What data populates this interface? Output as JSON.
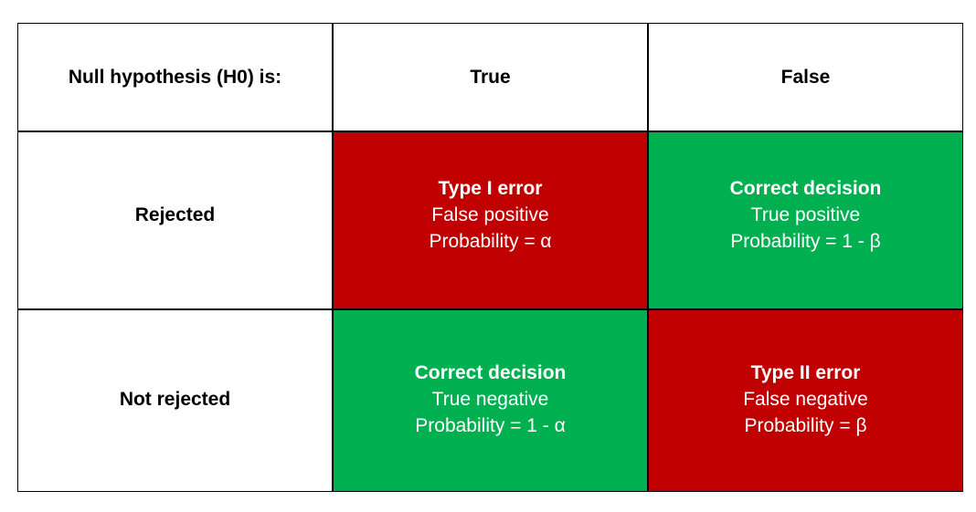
{
  "header": {
    "corner": "Null hypothesis (H0) is:",
    "columns": [
      "True",
      "False"
    ]
  },
  "rows": [
    {
      "label": "Rejected",
      "cells": [
        {
          "title": "Type I error",
          "line1": "False positive",
          "line2": "Probability = α",
          "color": "#c00000"
        },
        {
          "title": "Correct decision",
          "line1": "True positive",
          "line2": "Probability = 1 - β",
          "color": "#00b050"
        }
      ]
    },
    {
      "label": "Not rejected",
      "cells": [
        {
          "title": "Correct decision",
          "line1": "True negative",
          "line2": "Probability = 1 - α",
          "color": "#00b050"
        },
        {
          "title": "Type II error",
          "line1": "False negative",
          "line2": "Probability = β",
          "color": "#c00000"
        }
      ]
    }
  ]
}
